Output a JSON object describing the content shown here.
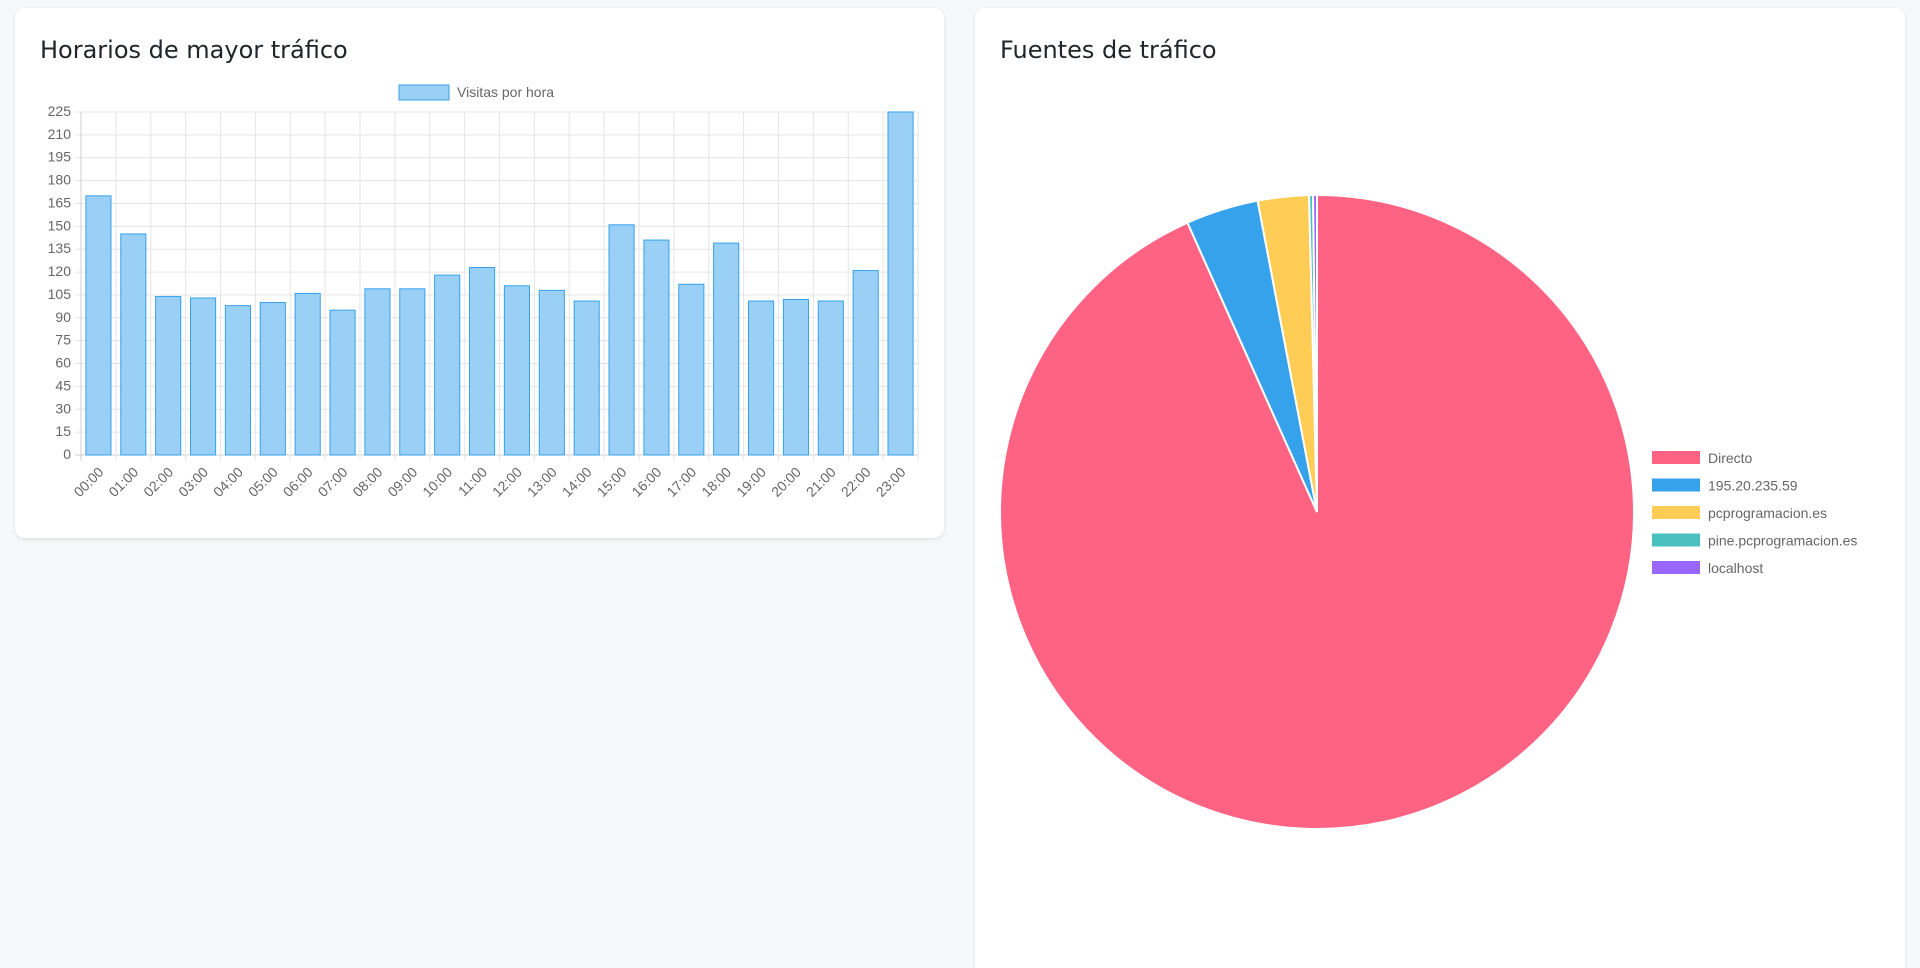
{
  "hours_card": {
    "title": "Horarios de mayor tráfico"
  },
  "sources_card": {
    "title": "Fuentes de tráfico"
  },
  "chart_data": [
    {
      "type": "bar",
      "legend_position": "top",
      "grid": true,
      "categories": [
        "00:00",
        "01:00",
        "02:00",
        "03:00",
        "04:00",
        "05:00",
        "06:00",
        "07:00",
        "08:00",
        "09:00",
        "10:00",
        "11:00",
        "12:00",
        "13:00",
        "14:00",
        "15:00",
        "16:00",
        "17:00",
        "18:00",
        "19:00",
        "20:00",
        "21:00",
        "22:00",
        "23:00"
      ],
      "series": [
        {
          "name": "Visitas por hora",
          "fill": "#9ad0f5",
          "stroke": "#36a2eb",
          "values": [
            170,
            145,
            104,
            103,
            98,
            100,
            106,
            95,
            109,
            109,
            118,
            123,
            111,
            108,
            101,
            151,
            141,
            112,
            139,
            101,
            102,
            101,
            121,
            225
          ]
        }
      ],
      "ylim": [
        0,
        225
      ],
      "yticks": [
        0,
        15,
        30,
        45,
        60,
        75,
        90,
        105,
        120,
        135,
        150,
        165,
        180,
        195,
        210,
        225
      ]
    },
    {
      "type": "pie",
      "legend_position": "right",
      "labels": [
        "Directo",
        "195.20.235.59",
        "pcprogramacion.es",
        "pine.pcprogramacion.es",
        "localhost"
      ],
      "values": [
        93.3,
        3.7,
        2.6,
        0.2,
        0.2
      ],
      "colors": [
        "#ff6384",
        "#36a2eb",
        "#ffcd56",
        "#4bc0c0",
        "#9966ff"
      ]
    }
  ]
}
